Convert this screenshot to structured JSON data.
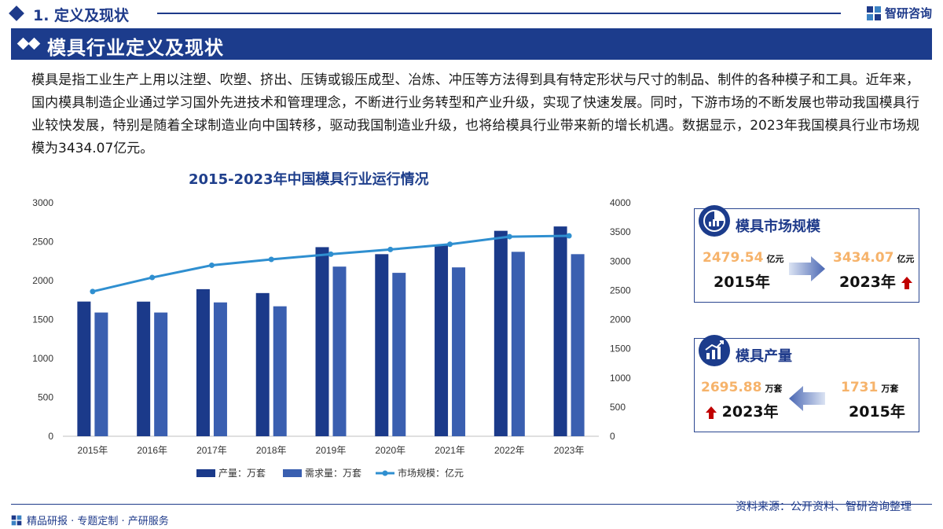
{
  "header": {
    "section_title": "1. 定义及现状",
    "brand_name": "智研咨询"
  },
  "banner": {
    "title": "模具行业定义及现状"
  },
  "intro_text": "模具是指工业生产上用以注塑、吹塑、挤出、压铸或锻压成型、冶炼、冲压等方法得到具有特定形状与尺寸的制品、制件的各种模子和工具。近年来，国内模具制造企业通过学习国外先进技术和管理理念，不断进行业务转型和产业升级，实现了快速发展。同时，下游市场的不断发展也带动我国模具行业较快发展，特别是随着全球制造业向中国转移，驱动我国制造业升级，也将给模具行业带来新的增长机遇。数据显示，2023年我国模具行业市场规模为3434.07亿元。",
  "chart_data": {
    "type": "bar",
    "title": "2015-2023年中国模具行业运行情况",
    "categories": [
      "2015年",
      "2016年",
      "2017年",
      "2018年",
      "2019年",
      "2020年",
      "2021年",
      "2022年",
      "2023年"
    ],
    "series": [
      {
        "name": "产量：万套",
        "type": "bar",
        "axis": "left",
        "color": "#1b3a8a",
        "values": [
          1731,
          1730,
          1890,
          1840,
          2430,
          2340,
          2460,
          2640,
          2695.88
        ]
      },
      {
        "name": "需求量：万套",
        "type": "bar",
        "axis": "left",
        "color": "#3a5fb0",
        "values": [
          1590,
          1590,
          1720,
          1670,
          2180,
          2100,
          2170,
          2370,
          2340
        ]
      },
      {
        "name": "市场规模：亿元",
        "type": "line",
        "axis": "right",
        "color": "#2f8fd0",
        "values": [
          2479.54,
          2720,
          2930,
          3030,
          3120,
          3200,
          3290,
          3420,
          3434.07
        ]
      }
    ],
    "y_left": {
      "min": 0,
      "max": 3000,
      "ticks": [
        "0",
        "500",
        "1000",
        "1500",
        "2000",
        "2500",
        "3000"
      ]
    },
    "y_right": {
      "min": 0,
      "max": 4000,
      "ticks": [
        "0",
        "500",
        "1000",
        "1500",
        "2000",
        "2500",
        "3000",
        "3500",
        "4000"
      ]
    },
    "grid": false,
    "legend_position": "bottom"
  },
  "cards": {
    "market": {
      "title": "模具市场规模",
      "from_value": "2479.54",
      "from_unit": "亿元",
      "from_year": "2015年",
      "to_value": "3434.07",
      "to_unit": "亿元",
      "to_year": "2023年"
    },
    "output": {
      "title": "模具产量",
      "left_value": "2695.88",
      "left_unit": "万套",
      "left_year": "2023年",
      "right_value": "1731",
      "right_unit": "万套",
      "right_year": "2015年"
    }
  },
  "colors": {
    "brand": "#1c3c8c",
    "highlight": "#f6b36b",
    "up_arrow": "#c00000"
  },
  "footer": {
    "source": "资料来源：公开资料、智研咨询整理",
    "left_text": "精品研报 · 专题定制 · 产研服务"
  }
}
